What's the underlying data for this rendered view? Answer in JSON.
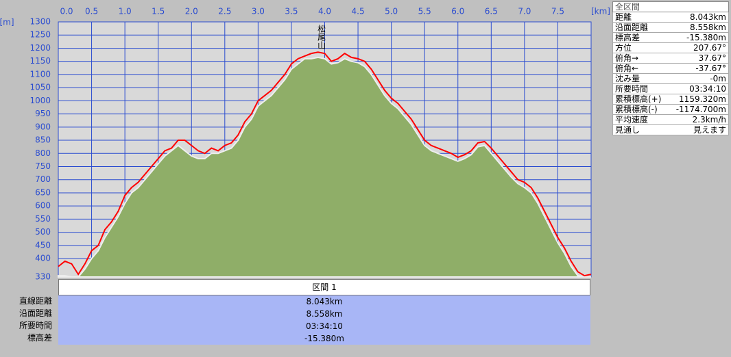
{
  "chart_data": {
    "type": "line",
    "xlabel": "[km]",
    "ylabel": "[m]",
    "x": [
      0,
      0.1,
      0.2,
      0.3,
      0.4,
      0.5,
      0.6,
      0.7,
      0.8,
      0.9,
      1,
      1.1,
      1.2,
      1.3,
      1.4,
      1.5,
      1.6,
      1.7,
      1.8,
      1.9,
      2,
      2.1,
      2.2,
      2.3,
      2.4,
      2.5,
      2.6,
      2.7,
      2.8,
      2.9,
      3,
      3.1,
      3.2,
      3.3,
      3.4,
      3.5,
      3.6,
      3.7,
      3.8,
      3.9,
      4,
      4.1,
      4.2,
      4.3,
      4.4,
      4.5,
      4.6,
      4.7,
      4.8,
      4.9,
      5,
      5.1,
      5.2,
      5.3,
      5.4,
      5.5,
      5.6,
      5.7,
      5.8,
      5.9,
      6,
      6.1,
      6.2,
      6.3,
      6.4,
      6.5,
      6.6,
      6.7,
      6.8,
      6.9,
      7,
      7.1,
      7.2,
      7.3,
      7.4,
      7.5,
      7.6,
      7.7,
      7.8,
      7.9,
      8
    ],
    "series": [
      {
        "color": "#8fae68",
        "fill": true,
        "values": [
          335,
          335,
          330,
          330,
          360,
          400,
          430,
          480,
          520,
          560,
          610,
          650,
          670,
          700,
          730,
          760,
          790,
          810,
          830,
          810,
          790,
          780,
          780,
          800,
          800,
          810,
          820,
          850,
          900,
          930,
          980,
          1000,
          1020,
          1050,
          1080,
          1120,
          1140,
          1160,
          1160,
          1165,
          1160,
          1140,
          1145,
          1160,
          1150,
          1145,
          1130,
          1100,
          1060,
          1020,
          990,
          970,
          940,
          910,
          870,
          830,
          810,
          800,
          790,
          780,
          770,
          780,
          795,
          825,
          830,
          800,
          770,
          740,
          710,
          685,
          670,
          650,
          610,
          560,
          510,
          460,
          420,
          370,
          335,
          330,
          330
        ]
      },
      {
        "color": "#ff0000",
        "fill": false,
        "values": [
          370,
          390,
          380,
          340,
          380,
          430,
          450,
          510,
          540,
          580,
          640,
          670,
          690,
          720,
          750,
          780,
          810,
          820,
          850,
          850,
          830,
          810,
          800,
          820,
          810,
          830,
          840,
          870,
          920,
          950,
          1000,
          1020,
          1040,
          1070,
          1100,
          1140,
          1160,
          1170,
          1180,
          1185,
          1180,
          1150,
          1160,
          1180,
          1165,
          1160,
          1150,
          1120,
          1080,
          1040,
          1010,
          990,
          960,
          930,
          890,
          850,
          830,
          820,
          810,
          800,
          785,
          795,
          810,
          840,
          845,
          820,
          790,
          760,
          730,
          700,
          690,
          670,
          630,
          580,
          530,
          480,
          440,
          390,
          350,
          335,
          340
        ]
      }
    ],
    "annotations": [
      {
        "text": "松尾山",
        "x": 3.95
      }
    ],
    "xlim": [
      0,
      8
    ],
    "ylim": [
      330,
      1300
    ],
    "xticks": [
      {
        "value": 0,
        "label": "0.0"
      },
      0.5,
      {
        "value": 1,
        "label": "1.0"
      },
      1.5,
      {
        "value": 2,
        "label": "2.0"
      },
      2.5,
      {
        "value": 3,
        "label": "3.0"
      },
      3.5,
      {
        "value": 4,
        "label": "4.0"
      },
      4.5,
      {
        "value": 5,
        "label": "5.0"
      },
      5.5,
      {
        "value": 6,
        "label": "6.0"
      },
      6.5,
      {
        "value": 7,
        "label": "7.0"
      },
      7.5
    ],
    "yticks": [
      330,
      400,
      450,
      500,
      550,
      600,
      650,
      700,
      750,
      800,
      850,
      900,
      950,
      1000,
      1050,
      1100,
      1150,
      1200,
      1250,
      1300
    ],
    "grid": true
  },
  "summary": {
    "title": "全区間",
    "rows": [
      [
        "距離",
        "8.043km"
      ],
      [
        "沿面距離",
        "8.558km"
      ],
      [
        "標高差",
        "-15.380m"
      ],
      [
        "方位",
        "207.67°"
      ],
      [
        "俯角→",
        "37.67°"
      ],
      [
        "俯角←",
        "-37.67°"
      ],
      [
        "沈み量",
        "-0m"
      ],
      [
        "所要時間",
        "03:34:10"
      ],
      [
        "累積標高(+)",
        "1159.320m"
      ],
      [
        "累積標高(-)",
        "-1174.700m"
      ],
      [
        "平均速度",
        "2.3km/h"
      ],
      [
        "見通し",
        "見えます"
      ]
    ]
  },
  "section_table": {
    "header": "区間 1",
    "rows": [
      [
        "直線距離",
        "8.043km"
      ],
      [
        "沿面距離",
        "8.558km"
      ],
      [
        "所要時間",
        "03:34:10"
      ],
      [
        "標高差",
        "-15.380m"
      ]
    ]
  }
}
